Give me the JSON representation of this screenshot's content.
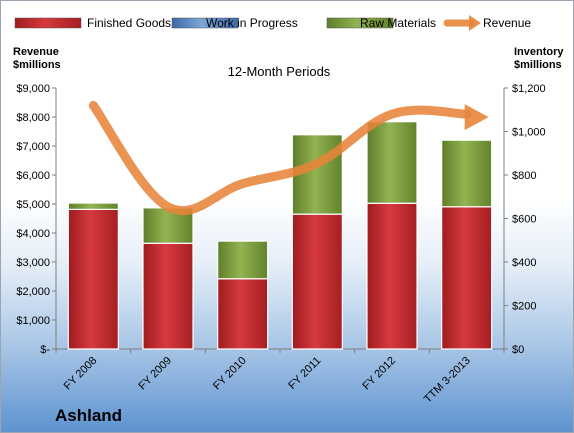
{
  "chart_data": {
    "type": "bar",
    "stacked": true,
    "title": "12-Month Periods",
    "company": "Ashland",
    "categories": [
      "FY 2008",
      "FY 2009",
      "FY 2010",
      "FY 2011",
      "FY 2012",
      "TTM 3-2013"
    ],
    "left_axis": {
      "label_line1": "Revenue",
      "label_line2": "$millions",
      "ylim": [
        0,
        9000
      ],
      "ticks": [
        0,
        1000,
        2000,
        3000,
        4000,
        5000,
        6000,
        7000,
        8000,
        9000
      ],
      "tick_labels": [
        "$-",
        "$1,000",
        "$2,000",
        "$3,000",
        "$4,000",
        "$5,000",
        "$6,000",
        "$7,000",
        "$8,000",
        "$9,000"
      ]
    },
    "right_axis": {
      "label_line1": "Inventory",
      "label_line2": "$millions",
      "ylim": [
        0,
        1200
      ],
      "ticks": [
        0,
        200,
        400,
        600,
        800,
        1000,
        1200
      ],
      "tick_labels": [
        "$0",
        "$200",
        "$400",
        "$600",
        "$800",
        "$1,000",
        "$1,200"
      ]
    },
    "series": [
      {
        "name": "Finished Goods",
        "kind": "bar",
        "axis": "right",
        "color": "#c0262b",
        "values": [
          642,
          486,
          323,
          620,
          670,
          654
        ]
      },
      {
        "name": "Work in Progress",
        "kind": "bar",
        "axis": "right",
        "color": "#4f81bd",
        "values": [
          0,
          0,
          0,
          0,
          0,
          0
        ]
      },
      {
        "name": "Raw Materials",
        "kind": "bar",
        "axis": "right",
        "color": "#7a9c3c",
        "values": [
          29,
          163,
          173,
          365,
          375,
          306
        ]
      },
      {
        "name": "Revenue",
        "kind": "line",
        "axis": "left",
        "color": "#e8843a",
        "values": [
          8400,
          4900,
          5700,
          6400,
          8100,
          8100
        ]
      }
    ],
    "grid": false,
    "legend_position": "top"
  }
}
